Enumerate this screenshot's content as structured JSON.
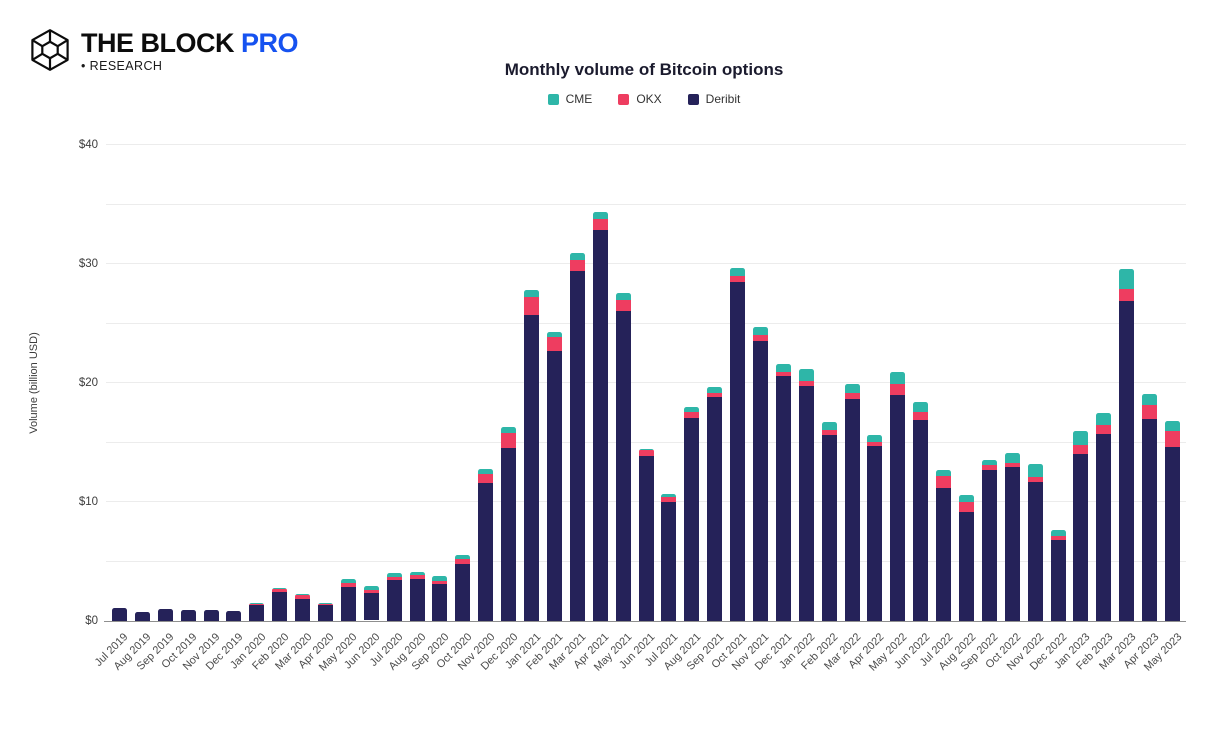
{
  "logo": {
    "brand": "THE BLOCK",
    "pro": "PRO",
    "sub": "• RESEARCH"
  },
  "colors": {
    "brand_blue": "#1652f0",
    "cme_teal": "#2eb6a8",
    "okx_pink": "#ee3d60",
    "deribit_navy": "#252259",
    "gridline": "#ececec",
    "axis_line": "#8f8f8f",
    "title_text": "#1b1b2e"
  },
  "chart_data": {
    "type": "bar",
    "stacked": true,
    "title": "Monthly volume of Bitcoin options",
    "xlabel": "",
    "ylabel": "Volume (billion USD)",
    "ylim": [
      0,
      40
    ],
    "grid": true,
    "gridline_step": 5,
    "legend_position": "top",
    "y_ticks": [
      0,
      10,
      20,
      30,
      40
    ],
    "y_tick_labels": [
      "$0",
      "$10",
      "$20",
      "$30",
      "$40"
    ],
    "categories": [
      "Jul 2019",
      "Aug 2019",
      "Sep 2019",
      "Oct 2019",
      "Nov 2019",
      "Dec 2019",
      "Jan 2020",
      "Feb 2020",
      "Mar 2020",
      "Apr 2020",
      "May 2020",
      "Jun 2020",
      "Jul 2020",
      "Aug 2020",
      "Sep 2020",
      "Oct 2020",
      "Nov 2020",
      "Dec 2020",
      "Jan 2021",
      "Feb 2021",
      "Mar 2021",
      "Apr 2021",
      "May 2021",
      "Jun 2021",
      "Jul 2021",
      "Aug 2021",
      "Sep 2021",
      "Oct 2021",
      "Nov 2021",
      "Dec 2021",
      "Jan 2022",
      "Feb 2022",
      "Mar 2022",
      "Apr 2022",
      "May 2022",
      "Jun 2022",
      "Jul 2022",
      "Aug 2022",
      "Sep 2022",
      "Oct 2022",
      "Nov 2022",
      "Dec 2022",
      "Jan 2023",
      "Feb 2023",
      "Mar 2023",
      "Apr 2023",
      "May 2023"
    ],
    "series": [
      {
        "name": "CME",
        "color": "#2eb6a8",
        "values": [
          0,
          0,
          0,
          0,
          0,
          0,
          0.05,
          0.05,
          0.05,
          0.05,
          0.35,
          0.35,
          0.3,
          0.25,
          0.4,
          0.35,
          0.4,
          0.5,
          0.6,
          0.4,
          0.6,
          0.55,
          0.55,
          0.1,
          0.25,
          0.4,
          0.5,
          0.65,
          0.7,
          0.7,
          1.0,
          0.7,
          0.75,
          0.55,
          1.0,
          0.85,
          0.5,
          0.6,
          0.45,
          0.85,
          1.1,
          0.5,
          1.15,
          1.05,
          1.7,
          0.9,
          0.85
        ]
      },
      {
        "name": "OKX",
        "color": "#ee3d60",
        "values": [
          0,
          0,
          0,
          0,
          0,
          0,
          0.15,
          0.25,
          0.35,
          0.15,
          0.35,
          0.25,
          0.3,
          0.35,
          0.3,
          0.4,
          0.8,
          1.3,
          1.5,
          1.2,
          0.9,
          0.95,
          1.0,
          0.45,
          0.45,
          0.5,
          0.35,
          0.55,
          0.45,
          0.35,
          0.4,
          0.4,
          0.5,
          0.35,
          0.9,
          0.65,
          1.0,
          0.8,
          0.4,
          0.35,
          0.4,
          0.35,
          0.75,
          0.7,
          1.0,
          1.2,
          1.3
        ]
      },
      {
        "name": "Deribit",
        "color": "#252259",
        "values": [
          1.1,
          0.75,
          1.0,
          0.95,
          0.95,
          0.85,
          1.35,
          2.5,
          1.9,
          1.3,
          2.8,
          2.3,
          3.4,
          3.5,
          3.1,
          4.8,
          11.6,
          14.5,
          25.7,
          22.7,
          29.4,
          32.9,
          26.0,
          13.9,
          10.0,
          17.1,
          18.8,
          28.5,
          23.55,
          20.55,
          19.8,
          15.6,
          18.7,
          14.7,
          19.0,
          16.9,
          11.2,
          9.2,
          12.7,
          12.9,
          11.7,
          6.8,
          14.1,
          15.75,
          26.9,
          17.0,
          14.65
        ]
      }
    ]
  }
}
